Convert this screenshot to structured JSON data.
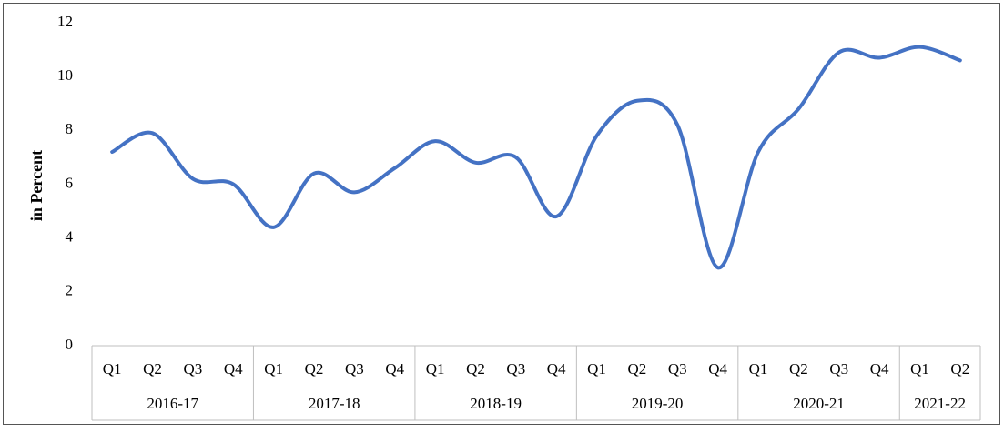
{
  "chart_data": {
    "type": "line",
    "y_label": "in Percent",
    "groups": [
      {
        "name": "2016-17",
        "categories": [
          "Q1",
          "Q2",
          "Q3",
          "Q4"
        ]
      },
      {
        "name": "2017-18",
        "categories": [
          "Q1",
          "Q2",
          "Q3",
          "Q4"
        ]
      },
      {
        "name": "2018-19",
        "categories": [
          "Q1",
          "Q2",
          "Q3",
          "Q4"
        ]
      },
      {
        "name": "2019-20",
        "categories": [
          "Q1",
          "Q2",
          "Q3",
          "Q4"
        ]
      },
      {
        "name": "2020-21",
        "categories": [
          "Q1",
          "Q2",
          "Q3",
          "Q4"
        ]
      },
      {
        "name": "2021-22",
        "categories": [
          "Q1",
          "Q2"
        ]
      }
    ],
    "values": [
      7.2,
      7.9,
      6.2,
      6.0,
      4.4,
      6.4,
      5.7,
      6.6,
      7.6,
      6.8,
      7.0,
      4.8,
      7.8,
      9.1,
      8.2,
      2.9,
      7.2,
      8.8,
      10.9,
      10.7,
      11.1,
      10.6
    ],
    "color": "#4472c4",
    "smooth": true,
    "grid": false,
    "ylim": [
      0,
      12
    ],
    "yticks": [
      0,
      2,
      4,
      6,
      8,
      10,
      12
    ]
  }
}
